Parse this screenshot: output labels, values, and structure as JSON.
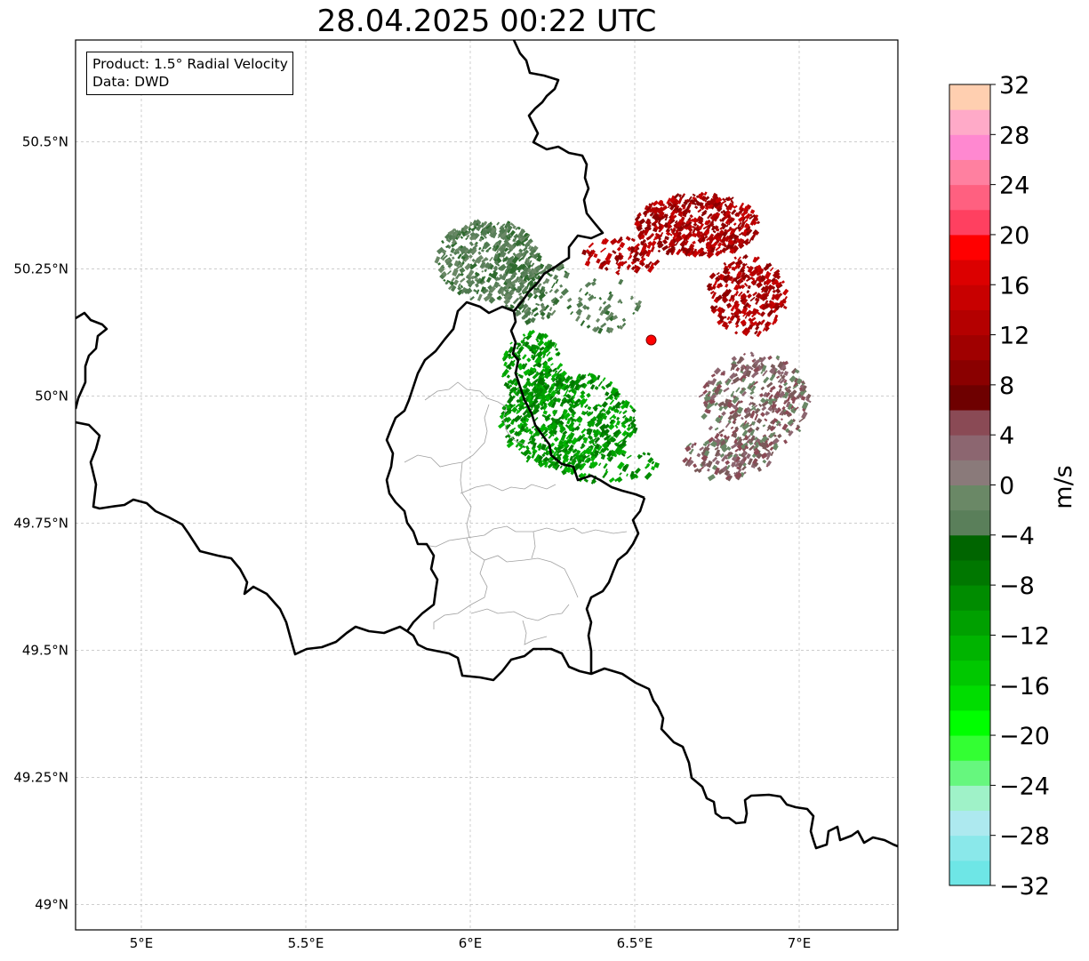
{
  "title": "28.04.2025 00:22 UTC",
  "info": {
    "product": "Product: 1.5° Radial Velocity",
    "source": "Data: DWD"
  },
  "map": {
    "lon_range": [
      4.8,
      7.3
    ],
    "lat_range": [
      48.95,
      50.7
    ],
    "x_ticks": [
      {
        "lon": 5.0,
        "label": "5°E"
      },
      {
        "lon": 5.5,
        "label": "5.5°E"
      },
      {
        "lon": 6.0,
        "label": "6°E"
      },
      {
        "lon": 6.5,
        "label": "6.5°E"
      },
      {
        "lon": 7.0,
        "label": "7°E"
      }
    ],
    "y_ticks": [
      {
        "lat": 50.5,
        "label": "50.5°N"
      },
      {
        "lat": 50.25,
        "label": "50.25°N"
      },
      {
        "lat": 50.0,
        "label": "50°N"
      },
      {
        "lat": 49.75,
        "label": "49.75°N"
      },
      {
        "lat": 49.5,
        "label": "49.5°N"
      },
      {
        "lat": 49.25,
        "label": "49.25°N"
      },
      {
        "lat": 49.0,
        "label": "49°N"
      }
    ],
    "gridlines": true,
    "radar_site": {
      "lon": 6.55,
      "lat": 50.11,
      "color": "#ff0000"
    }
  },
  "colorbar": {
    "label": "m/s",
    "min": -32,
    "max": 32,
    "tick_labels": [
      "32",
      "28",
      "24",
      "20",
      "16",
      "12",
      "8",
      "4",
      "0",
      "−4",
      "−8",
      "−12",
      "−16",
      "−20",
      "−24",
      "−28",
      "−32"
    ],
    "colors": [
      "#6ee6e6",
      "#8ae8ea",
      "#ade9ef",
      "#9ff2c8",
      "#66f77e",
      "#33ff33",
      "#00ff00",
      "#00dd00",
      "#00c800",
      "#00b400",
      "#00a000",
      "#008c00",
      "#007700",
      "#006500",
      "#5a7f5a",
      "#6a8866",
      "#8a7a7a",
      "#8c6670",
      "#8a4a55",
      "#6e0000",
      "#8a0000",
      "#a00000",
      "#b40000",
      "#c80000",
      "#dc0000",
      "#ff0000",
      "#ff4060",
      "#ff6080",
      "#ff80a0",
      "#ff88d0",
      "#ffaac8",
      "#ffcfb0"
    ]
  }
}
